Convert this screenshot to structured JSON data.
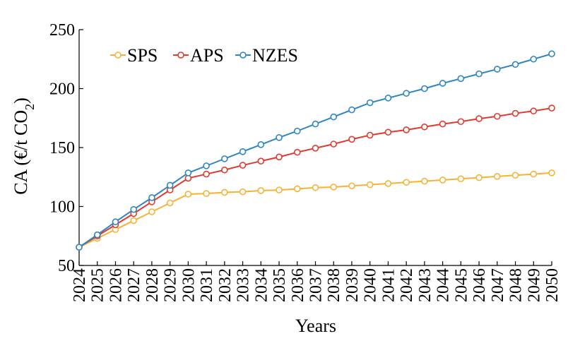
{
  "chart_data": {
    "type": "line",
    "xlabel": "Years",
    "ylabel": "CA (€/t CO",
    "ylabel_sub": "2",
    "ylabel_close": ")",
    "ylim": [
      50,
      250
    ],
    "yticks": [
      50,
      100,
      150,
      200,
      250
    ],
    "grid": false,
    "legend_position": "top-left",
    "x": [
      "2024",
      "2025",
      "2026",
      "2027",
      "2028",
      "2029",
      "2030",
      "2031",
      "2032",
      "2033",
      "2034",
      "2035",
      "2036",
      "2037",
      "2038",
      "2039",
      "2040",
      "2041",
      "2042",
      "2043",
      "2044",
      "2045",
      "2046",
      "2047",
      "2048",
      "2049",
      "2050"
    ],
    "series": [
      {
        "name": "SPS",
        "color": "#f5b335",
        "values": [
          65.5,
          73,
          80.5,
          88,
          95.5,
          103,
          110.5,
          111,
          112,
          112.5,
          113.5,
          114,
          115,
          116,
          116.5,
          117.5,
          118.5,
          119.5,
          120.5,
          121.5,
          122.5,
          123.5,
          124.5,
          125.5,
          126.5,
          127.5,
          128.5
        ]
      },
      {
        "name": "APS",
        "color": "#e03a2f",
        "values": [
          65.5,
          75,
          84.5,
          94,
          104,
          114,
          124,
          127.5,
          131,
          135,
          138.5,
          142,
          146,
          149.5,
          153,
          157,
          160.5,
          163,
          165,
          167.5,
          170,
          172,
          174.5,
          176.5,
          179,
          181,
          183.5
        ]
      },
      {
        "name": "NZES",
        "color": "#2e86c1",
        "values": [
          65.5,
          76,
          87,
          97.5,
          107.5,
          118,
          128.5,
          134.5,
          140.5,
          146.5,
          152.5,
          158.5,
          164,
          170,
          176,
          182,
          188,
          192,
          196,
          200,
          204.5,
          208.5,
          212.5,
          216.5,
          220.5,
          225,
          229.5
        ]
      }
    ]
  }
}
